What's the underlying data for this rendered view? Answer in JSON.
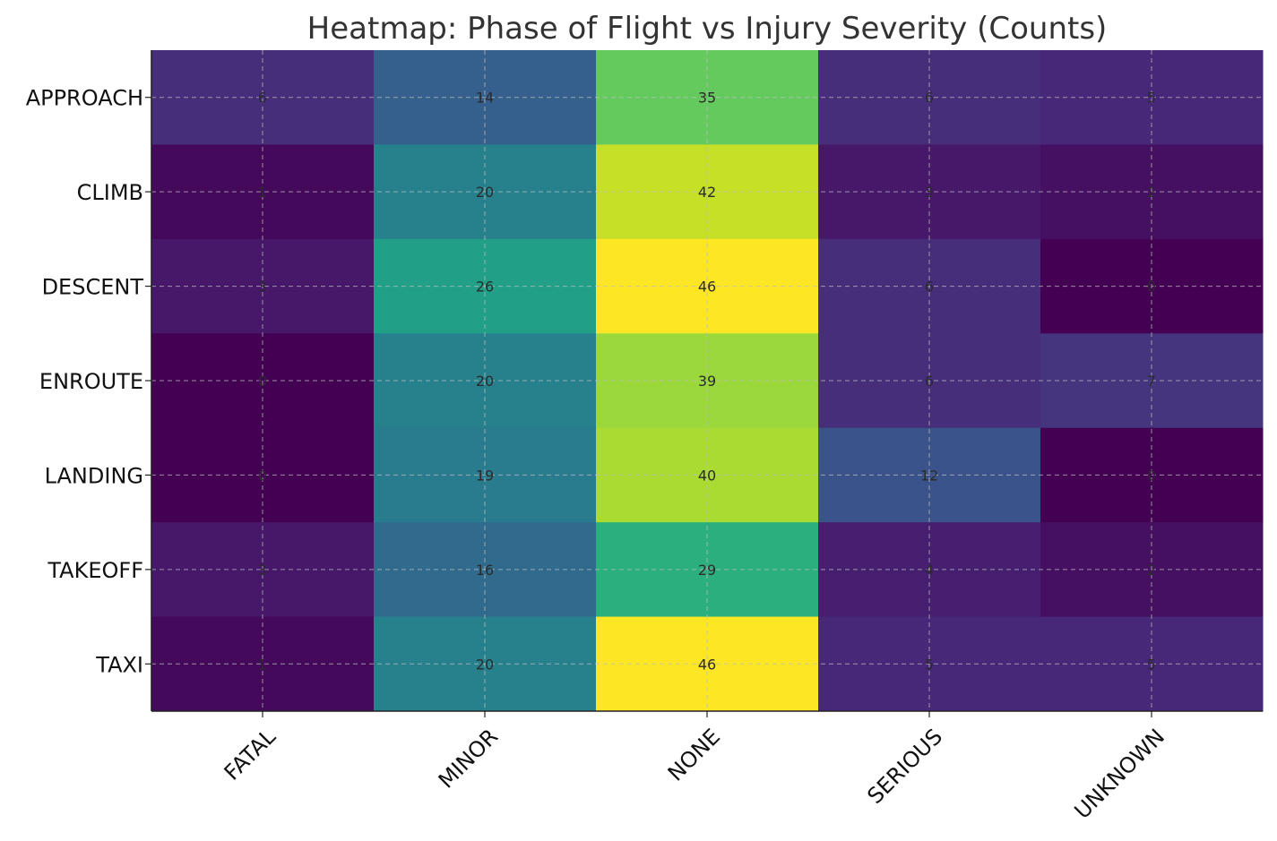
{
  "chart_data": {
    "type": "heatmap",
    "title": "Heatmap: Phase of Flight vs Injury Severity (Counts)",
    "xlabel": "",
    "ylabel": "",
    "x_categories": [
      "FATAL",
      "MINOR",
      "NONE",
      "SERIOUS",
      "UNKNOWN"
    ],
    "y_categories": [
      "APPROACH",
      "CLIMB",
      "DESCENT",
      "ENROUTE",
      "LANDING",
      "TAKEOFF",
      "TAXI"
    ],
    "values": [
      [
        6,
        14,
        35,
        6,
        5
      ],
      [
        1,
        20,
        42,
        3,
        2
      ],
      [
        3,
        26,
        46,
        6,
        0
      ],
      [
        0,
        20,
        39,
        6,
        7
      ],
      [
        0,
        19,
        40,
        12,
        0
      ],
      [
        3,
        16,
        29,
        4,
        2
      ],
      [
        1,
        20,
        46,
        5,
        5
      ]
    ],
    "color_scale": "viridis",
    "value_range": [
      0,
      46
    ],
    "grid": true,
    "colorbar": false
  }
}
